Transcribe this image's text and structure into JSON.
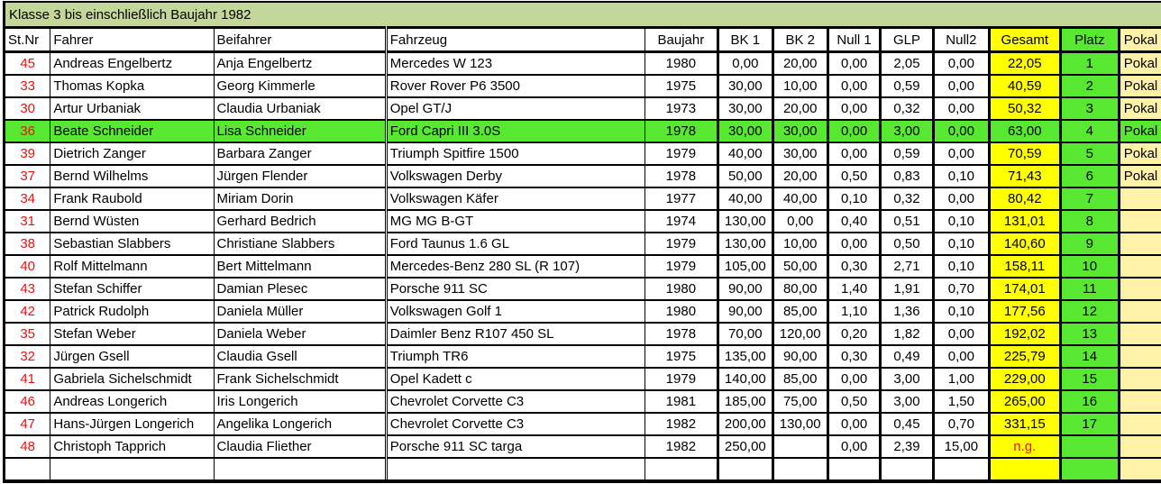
{
  "title": "Klasse 3 bis einschließlich Baujahr 1982",
  "colors": {
    "title_bg": "#C4D79B",
    "gesamt_bg": "#FFFF00",
    "platz_bg": "#58E832",
    "pokal_bg": "#FFF2A8",
    "highlight_bg": "#58E832",
    "stnr_color": "#EE1111"
  },
  "columns": [
    {
      "key": "stnr",
      "label": "St.Nr"
    },
    {
      "key": "fahrer",
      "label": "Fahrer"
    },
    {
      "key": "beifahrer",
      "label": "Beifahrer"
    },
    {
      "key": "fahrzeug",
      "label": "Fahrzeug"
    },
    {
      "key": "baujahr",
      "label": "Baujahr"
    },
    {
      "key": "bk1",
      "label": "BK 1"
    },
    {
      "key": "bk2",
      "label": "BK 2"
    },
    {
      "key": "null1",
      "label": "Null 1"
    },
    {
      "key": "glp",
      "label": "GLP"
    },
    {
      "key": "null2",
      "label": "Null2"
    },
    {
      "key": "gesamt",
      "label": "Gesamt"
    },
    {
      "key": "platz",
      "label": "Platz"
    },
    {
      "key": "pokal",
      "label": "Pokal"
    }
  ],
  "rows": [
    {
      "stnr": "45",
      "fahrer": "Andreas Engelbertz",
      "beifahrer": "Anja Engelbertz",
      "fahrzeug": "Mercedes W 123",
      "baujahr": "1980",
      "bk1": "0,00",
      "bk2": "20,00",
      "null1": "0,00",
      "glp": "2,05",
      "null2": "0,00",
      "gesamt": "22,05",
      "platz": "1",
      "pokal": "Pokal"
    },
    {
      "stnr": "33",
      "fahrer": "Thomas Kopka",
      "beifahrer": "Georg Kimmerle",
      "fahrzeug": "Rover Rover P6 3500",
      "baujahr": "1975",
      "bk1": "30,00",
      "bk2": "10,00",
      "null1": "0,00",
      "glp": "0,59",
      "null2": "0,00",
      "gesamt": "40,59",
      "platz": "2",
      "pokal": "Pokal"
    },
    {
      "stnr": "30",
      "fahrer": "Artur Urbaniak",
      "beifahrer": "Claudia Urbaniak",
      "fahrzeug": "Opel GT/J",
      "baujahr": "1973",
      "bk1": "30,00",
      "bk2": "20,00",
      "null1": "0,00",
      "glp": "0,32",
      "null2": "0,00",
      "gesamt": "50,32",
      "platz": "3",
      "pokal": "Pokal"
    },
    {
      "stnr": "36",
      "fahrer": "Beate Schneider",
      "beifahrer": "Lisa Schneider",
      "fahrzeug": "Ford Capri III 3.0S",
      "baujahr": "1978",
      "bk1": "30,00",
      "bk2": "30,00",
      "null1": "0,00",
      "glp": "3,00",
      "null2": "0,00",
      "gesamt": "63,00",
      "platz": "4",
      "pokal": "Pokal",
      "highlighted": true
    },
    {
      "stnr": "39",
      "fahrer": "Dietrich Zanger",
      "beifahrer": "Barbara Zanger",
      "fahrzeug": "Triumph Spitfire 1500",
      "baujahr": "1979",
      "bk1": "40,00",
      "bk2": "30,00",
      "null1": "0,00",
      "glp": "0,59",
      "null2": "0,00",
      "gesamt": "70,59",
      "platz": "5",
      "pokal": "Pokal"
    },
    {
      "stnr": "37",
      "fahrer": "Bernd Wilhelms",
      "beifahrer": "Jürgen Flender",
      "fahrzeug": "Volkswagen Derby",
      "baujahr": "1978",
      "bk1": "50,00",
      "bk2": "20,00",
      "null1": "0,50",
      "glp": "0,83",
      "null2": "0,10",
      "gesamt": "71,43",
      "platz": "6",
      "pokal": "Pokal"
    },
    {
      "stnr": "34",
      "fahrer": "Frank Raubold",
      "beifahrer": "Miriam Dorin",
      "fahrzeug": "Volkswagen Käfer",
      "baujahr": "1977",
      "bk1": "40,00",
      "bk2": "40,00",
      "null1": "0,10",
      "glp": "0,32",
      "null2": "0,00",
      "gesamt": "80,42",
      "platz": "7",
      "pokal": ""
    },
    {
      "stnr": "31",
      "fahrer": "Bernd Wüsten",
      "beifahrer": "Gerhard Bedrich",
      "fahrzeug": "MG MG B-GT",
      "baujahr": "1974",
      "bk1": "130,00",
      "bk2": "0,00",
      "null1": "0,40",
      "glp": "0,51",
      "null2": "0,10",
      "gesamt": "131,01",
      "platz": "8",
      "pokal": ""
    },
    {
      "stnr": "38",
      "fahrer": "Sebastian Slabbers",
      "beifahrer": "Christiane Slabbers",
      "fahrzeug": "Ford Taunus 1.6 GL",
      "baujahr": "1979",
      "bk1": "130,00",
      "bk2": "10,00",
      "null1": "0,00",
      "glp": "0,50",
      "null2": "0,10",
      "gesamt": "140,60",
      "platz": "9",
      "pokal": ""
    },
    {
      "stnr": "40",
      "fahrer": "Rolf Mittelmann",
      "beifahrer": "Bert Mittelmann",
      "fahrzeug": "Mercedes-Benz 280 SL (R 107)",
      "baujahr": "1979",
      "bk1": "105,00",
      "bk2": "50,00",
      "null1": "0,30",
      "glp": "2,71",
      "null2": "0,10",
      "gesamt": "158,11",
      "platz": "10",
      "pokal": ""
    },
    {
      "stnr": "43",
      "fahrer": "Stefan Schiffer",
      "beifahrer": "Damian Plesec",
      "fahrzeug": "Porsche 911 SC",
      "baujahr": "1980",
      "bk1": "90,00",
      "bk2": "80,00",
      "null1": "1,40",
      "glp": "1,91",
      "null2": "0,70",
      "gesamt": "174,01",
      "platz": "11",
      "pokal": ""
    },
    {
      "stnr": "42",
      "fahrer": "Patrick Rudolph",
      "beifahrer": "Daniela Müller",
      "fahrzeug": "Volkswagen Golf 1",
      "baujahr": "1980",
      "bk1": "90,00",
      "bk2": "85,00",
      "null1": "1,10",
      "glp": "1,36",
      "null2": "0,10",
      "gesamt": "177,56",
      "platz": "12",
      "pokal": ""
    },
    {
      "stnr": "35",
      "fahrer": "Stefan Weber",
      "beifahrer": "Daniela Weber",
      "fahrzeug": "Daimler Benz R107 450 SL",
      "baujahr": "1978",
      "bk1": "70,00",
      "bk2": "120,00",
      "null1": "0,20",
      "glp": "1,82",
      "null2": "0,00",
      "gesamt": "192,02",
      "platz": "13",
      "pokal": ""
    },
    {
      "stnr": "32",
      "fahrer": "Jürgen Gsell",
      "beifahrer": "Claudia Gsell",
      "fahrzeug": "Triumph TR6",
      "baujahr": "1975",
      "bk1": "135,00",
      "bk2": "90,00",
      "null1": "0,30",
      "glp": "0,49",
      "null2": "0,00",
      "gesamt": "225,79",
      "platz": "14",
      "pokal": ""
    },
    {
      "stnr": "41",
      "fahrer": "Gabriela Sichelschmidt",
      "beifahrer": "Frank Sichelschmidt",
      "fahrzeug": "Opel Kadett c",
      "baujahr": "1979",
      "bk1": "140,00",
      "bk2": "85,00",
      "null1": "0,00",
      "glp": "3,00",
      "null2": "1,00",
      "gesamt": "229,00",
      "platz": "15",
      "pokal": ""
    },
    {
      "stnr": "46",
      "fahrer": "Andreas Longerich",
      "beifahrer": "Iris Longerich",
      "fahrzeug": "Chevrolet Corvette C3",
      "baujahr": "1981",
      "bk1": "185,00",
      "bk2": "75,00",
      "null1": "0,50",
      "glp": "3,00",
      "null2": "1,50",
      "gesamt": "265,00",
      "platz": "16",
      "pokal": ""
    },
    {
      "stnr": "47",
      "fahrer": "Hans-Jürgen Longerich",
      "beifahrer": "Angelika Longerich",
      "fahrzeug": "Chevrolet Corvette C3",
      "baujahr": "1982",
      "bk1": "200,00",
      "bk2": "130,00",
      "null1": "0,00",
      "glp": "0,45",
      "null2": "0,70",
      "gesamt": "331,15",
      "platz": "17",
      "pokal": ""
    },
    {
      "stnr": "48",
      "fahrer": "Christoph Tapprich",
      "beifahrer": "Claudia Fliether",
      "fahrzeug": "Porsche 911 SC targa",
      "baujahr": "1982",
      "bk1": "250,00",
      "bk2": "",
      "null1": "0,00",
      "glp": "2,39",
      "null2": "15,00",
      "gesamt": "n.g.",
      "platz": "",
      "pokal": ""
    },
    {
      "stnr": "",
      "fahrer": "",
      "beifahrer": "",
      "fahrzeug": "",
      "baujahr": "",
      "bk1": "",
      "bk2": "",
      "null1": "",
      "glp": "",
      "null2": "",
      "gesamt": "",
      "platz": "",
      "pokal": ""
    }
  ]
}
